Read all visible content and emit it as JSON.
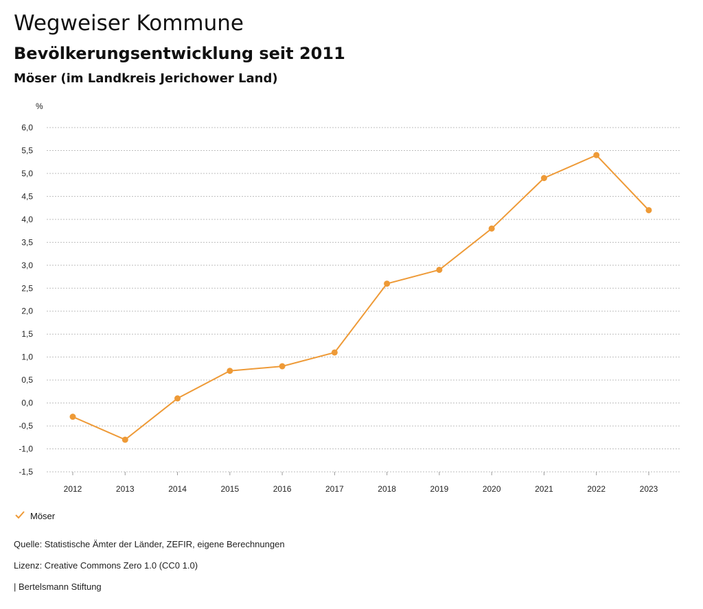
{
  "header": {
    "title": "Wegweiser Kommune",
    "subtitle": "Bevölkerungsentwicklung seit 2011",
    "region": "Möser (im Landkreis Jerichower Land)"
  },
  "chart_data": {
    "type": "line",
    "ylabel": "%",
    "x": [
      "2012",
      "2013",
      "2014",
      "2015",
      "2016",
      "2017",
      "2018",
      "2019",
      "2020",
      "2021",
      "2022",
      "2023"
    ],
    "series": [
      {
        "name": "Möser",
        "color": "#EE9A37",
        "values": [
          -0.3,
          -0.8,
          0.1,
          0.7,
          0.8,
          1.1,
          2.6,
          2.9,
          3.8,
          4.9,
          5.4,
          4.2
        ]
      }
    ],
    "ylim": [
      -1.5,
      6.0
    ],
    "yticks": [
      "6,0",
      "5,5",
      "5,0",
      "4,5",
      "4,0",
      "3,5",
      "3,0",
      "2,5",
      "2,0",
      "1,5",
      "1,0",
      "0,5",
      "0,0",
      "-0,5",
      "-1,0",
      "-1,5"
    ],
    "grid": true,
    "legend": "bottom-left"
  },
  "legend": {
    "label": "Möser",
    "icon": "checkmark-icon"
  },
  "footer": {
    "source": "Quelle: Statistische Ämter der Länder, ZEFIR, eigene Berechnungen",
    "license": "Lizenz: Creative Commons Zero 1.0 (CC0 1.0)",
    "publisher": "| Bertelsmann Stiftung"
  }
}
